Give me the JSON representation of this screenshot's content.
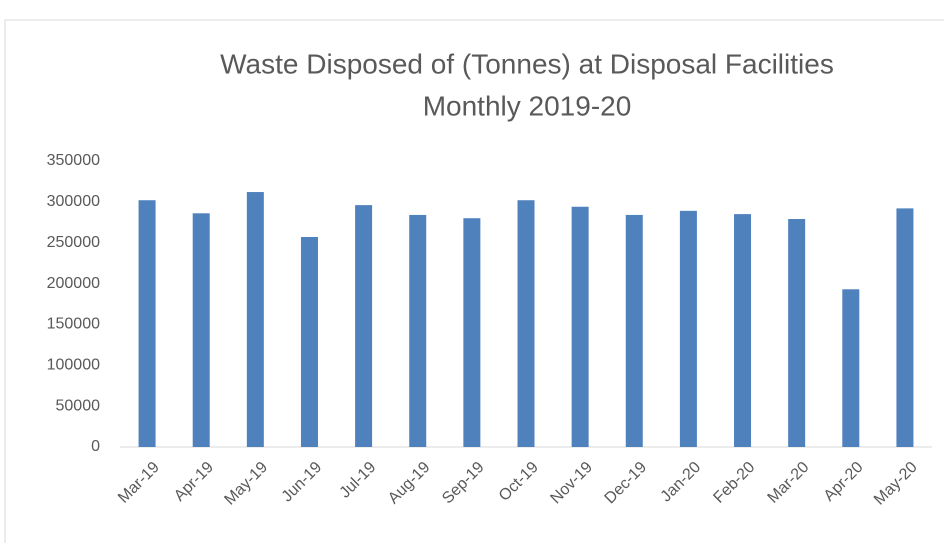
{
  "chart_data": {
    "type": "bar",
    "title": [
      "Waste Disposed of (Tonnes) at Disposal Facilities",
      "Monthly 2019-20"
    ],
    "categories": [
      "Mar-19",
      "Apr-19",
      "May-19",
      "Jun-19",
      "Jul-19",
      "Aug-19",
      "Sep-19",
      "Oct-19",
      "Nov-19",
      "Dec-19",
      "Jan-20",
      "Feb-20",
      "Mar-20",
      "Apr-20",
      "May-20"
    ],
    "values": [
      302000,
      286000,
      312000,
      257000,
      296000,
      284000,
      280000,
      302000,
      294000,
      284000,
      289000,
      285000,
      279000,
      193000,
      292000
    ],
    "color": "#4f81bd",
    "ylim": [
      0,
      350000
    ],
    "yticks": [
      0,
      50000,
      100000,
      150000,
      200000,
      250000,
      300000,
      350000
    ],
    "grid": false
  }
}
